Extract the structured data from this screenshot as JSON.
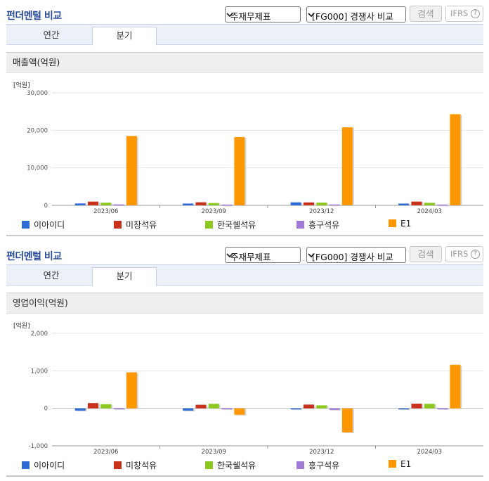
{
  "panels": [
    {
      "title": "펀더멘털 비교",
      "select1": "주재무제표",
      "select2": "[FG000] 경쟁사 비교",
      "search_label": "검색",
      "ifrs_label": "IFRS",
      "help_label": "?",
      "tabs": [
        "연간",
        "분기"
      ],
      "active_tab": "분기",
      "chart_title": "매출액(억원)",
      "unit": "[억원]"
    },
    {
      "title": "펀더멘털 비교",
      "select1": "주재무제표",
      "select2": "[FG000] 경쟁사 비교",
      "search_label": "검색",
      "ifrs_label": "IFRS",
      "help_label": "?",
      "tabs": [
        "연간",
        "분기"
      ],
      "active_tab": "분기",
      "chart_title": "영업이익(억원)",
      "unit": "[억원]"
    }
  ],
  "colors": {
    "이아이디": "#2f6bd6",
    "미창석유": "#c8311b",
    "한국쉘석유": "#8cc820",
    "흥구석유": "#a07ad6",
    "E1": "#ff9800"
  },
  "chart_data": [
    {
      "type": "bar",
      "title": "매출액(억원)",
      "ylabel": "[억원]",
      "categories": [
        "2023/06",
        "2023/09",
        "2023/12",
        "2024/03"
      ],
      "ylim": [
        0,
        30000
      ],
      "yticks": [
        0,
        10000,
        20000,
        30000
      ],
      "ytick_labels": [
        "0",
        "10,000",
        "20,000",
        "30,000"
      ],
      "grid": true,
      "legend": "bottom",
      "series": [
        {
          "name": "이아이디",
          "values": [
            500,
            480,
            800,
            480
          ]
        },
        {
          "name": "미창석유",
          "values": [
            1000,
            820,
            780,
            1000
          ]
        },
        {
          "name": "한국쉘석유",
          "values": [
            700,
            620,
            720,
            680
          ]
        },
        {
          "name": "흥구석유",
          "values": [
            250,
            200,
            230,
            210
          ]
        },
        {
          "name": "E1",
          "values": [
            18500,
            18200,
            20800,
            24300
          ]
        }
      ]
    },
    {
      "type": "bar",
      "title": "영업이익(억원)",
      "ylabel": "[억원]",
      "categories": [
        "2023/06",
        "2023/09",
        "2023/12",
        "2024/03"
      ],
      "ylim": [
        -1000,
        2000
      ],
      "yticks": [
        -1000,
        0,
        1000,
        2000
      ],
      "ytick_labels": [
        "-1,000",
        "0",
        "1,000",
        "2,000"
      ],
      "grid": true,
      "legend": "bottom",
      "series": [
        {
          "name": "이아이디",
          "values": [
            -60,
            -60,
            -10,
            -5
          ]
        },
        {
          "name": "미창석유",
          "values": [
            140,
            95,
            100,
            125
          ]
        },
        {
          "name": "한국쉘석유",
          "values": [
            110,
            120,
            80,
            120
          ]
        },
        {
          "name": "흥구석유",
          "values": [
            5,
            5,
            -40,
            5
          ]
        },
        {
          "name": "E1",
          "values": [
            960,
            -170,
            -640,
            1160
          ]
        }
      ]
    }
  ]
}
